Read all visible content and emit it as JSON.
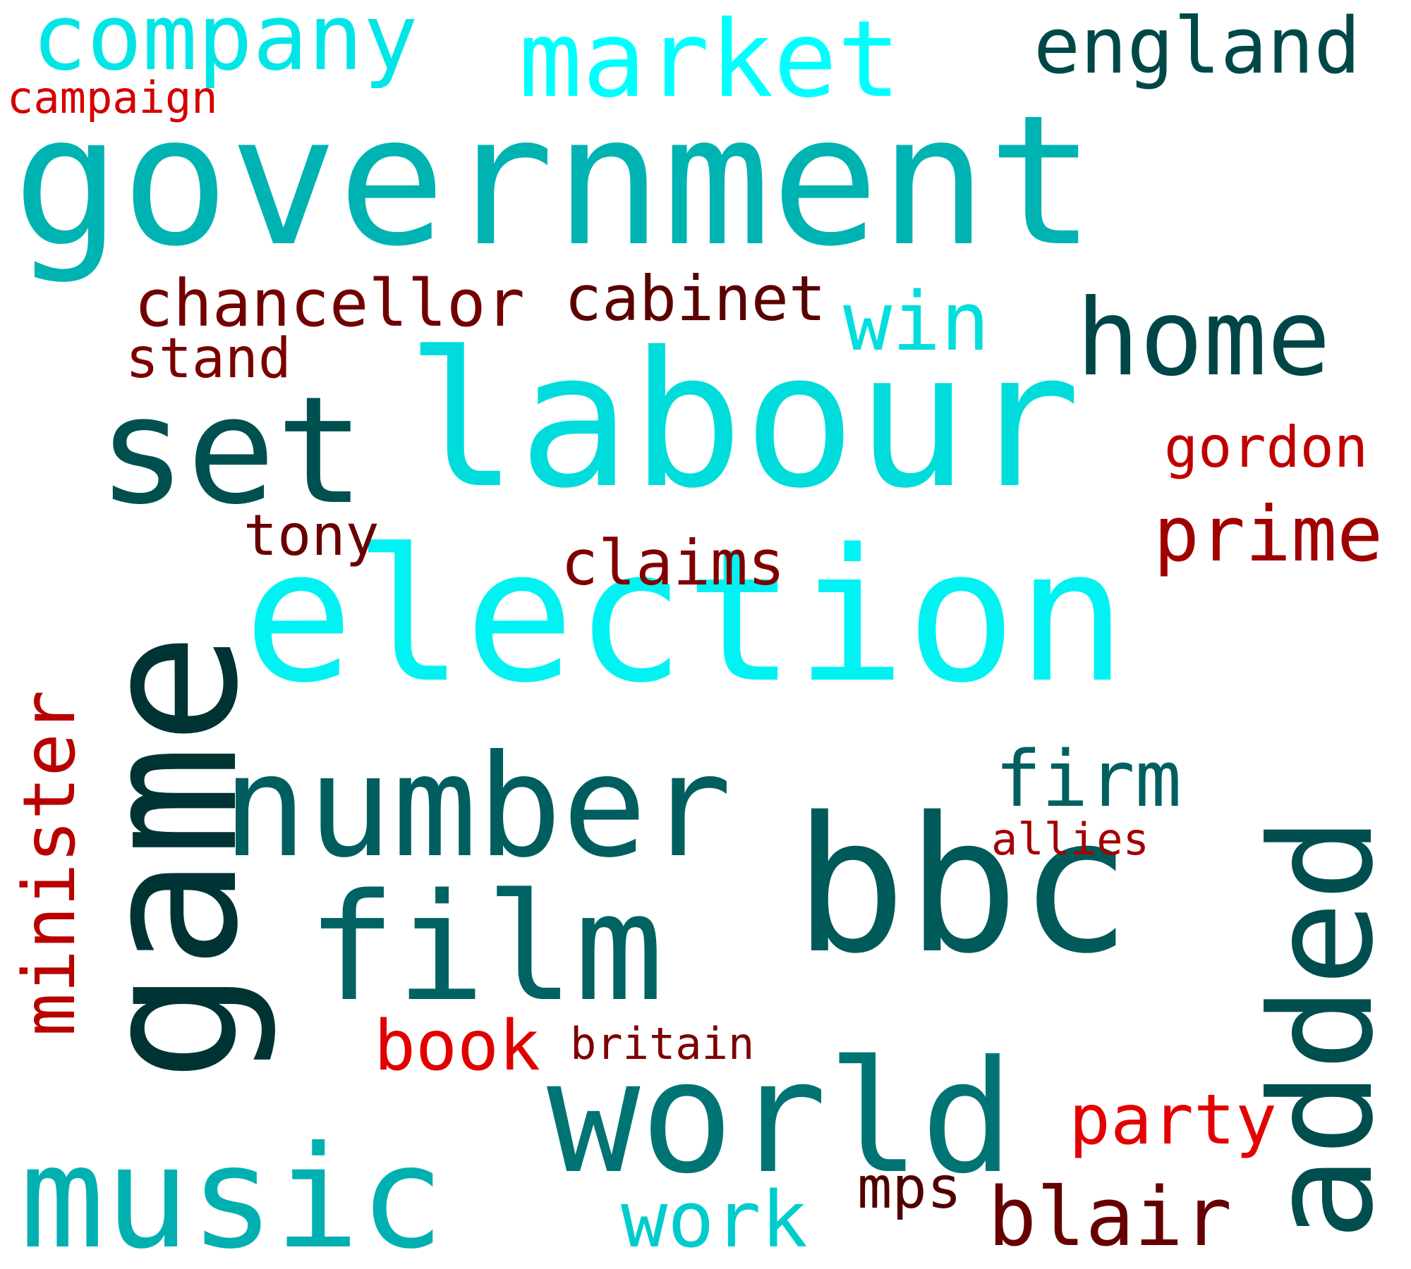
{
  "word_cloud": {
    "words": [
      {
        "text": "government",
        "color": "#00b3b3",
        "vertical": false
      },
      {
        "text": "election",
        "color": "#00f2f2",
        "vertical": false
      },
      {
        "text": "labour",
        "color": "#00dcdc",
        "vertical": false
      },
      {
        "text": "game",
        "color": "#003333",
        "vertical": true
      },
      {
        "text": "bbc",
        "color": "#005a5a",
        "vertical": false
      },
      {
        "text": "set",
        "color": "#005050",
        "vertical": false
      },
      {
        "text": "number",
        "color": "#005e5e",
        "vertical": false
      },
      {
        "text": "film",
        "color": "#006262",
        "vertical": false
      },
      {
        "text": "world",
        "color": "#007474",
        "vertical": false
      },
      {
        "text": "music",
        "color": "#00b0b0",
        "vertical": false
      },
      {
        "text": "added",
        "color": "#004e4e",
        "vertical": true
      },
      {
        "text": "market",
        "color": "#00ffff",
        "vertical": false
      },
      {
        "text": "company",
        "color": "#00e6e6",
        "vertical": false
      },
      {
        "text": "england",
        "color": "#004848",
        "vertical": false
      },
      {
        "text": "home",
        "color": "#004646",
        "vertical": false
      },
      {
        "text": "minister",
        "color": "#b80000",
        "vertical": true
      },
      {
        "text": "chancellor",
        "color": "#720000",
        "vertical": false
      },
      {
        "text": "cabinet",
        "color": "#5a0000",
        "vertical": false
      },
      {
        "text": "win",
        "color": "#00dede",
        "vertical": false
      },
      {
        "text": "prime",
        "color": "#a00000",
        "vertical": false
      },
      {
        "text": "gordon",
        "color": "#c00000",
        "vertical": false
      },
      {
        "text": "claims",
        "color": "#800000",
        "vertical": false
      },
      {
        "text": "firm",
        "color": "#006060",
        "vertical": false
      },
      {
        "text": "tony",
        "color": "#6a0000",
        "vertical": false
      },
      {
        "text": "stand",
        "color": "#7a0000",
        "vertical": false
      },
      {
        "text": "campaign",
        "color": "#d40000",
        "vertical": false
      },
      {
        "text": "book",
        "color": "#e00000",
        "vertical": false
      },
      {
        "text": "britain",
        "color": "#7e0000",
        "vertical": false
      },
      {
        "text": "allies",
        "color": "#a40000",
        "vertical": false
      },
      {
        "text": "party",
        "color": "#e40000",
        "vertical": false
      },
      {
        "text": "work",
        "color": "#00cccc",
        "vertical": false
      },
      {
        "text": "mps",
        "color": "#500000",
        "vertical": false
      },
      {
        "text": "blair",
        "color": "#660000",
        "vertical": false
      }
    ]
  }
}
